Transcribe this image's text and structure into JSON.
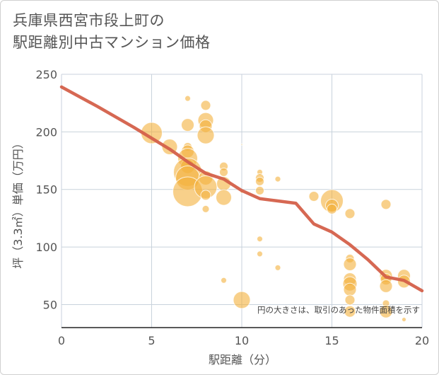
{
  "chart_data": {
    "type": "scatter",
    "title_line1": "兵庫県西宮市段上町の",
    "title_line2": "駅距離別中古マンション価格",
    "xlabel": "駅距離（分）",
    "ylabel": "坪（3.3㎡）単価（万円）",
    "note": "円の大きさは、取引のあった物件面積を示す",
    "xlim": [
      0,
      20
    ],
    "ylim": [
      30,
      250
    ],
    "xticks": [
      0,
      5,
      10,
      15,
      20
    ],
    "yticks": [
      50,
      100,
      150,
      200,
      250
    ],
    "grid": true,
    "colors": {
      "bubble": "#f3b03c",
      "trend": "#d4604a",
      "grid": "#c8d2dc"
    },
    "points": [
      {
        "x": 5,
        "y": 199,
        "s": 15
      },
      {
        "x": 6,
        "y": 187,
        "s": 11
      },
      {
        "x": 7,
        "y": 229,
        "s": 4
      },
      {
        "x": 7,
        "y": 206,
        "s": 9
      },
      {
        "x": 7,
        "y": 187,
        "s": 6
      },
      {
        "x": 7,
        "y": 183,
        "s": 9
      },
      {
        "x": 7,
        "y": 177,
        "s": 14
      },
      {
        "x": 7,
        "y": 170,
        "s": 10
      },
      {
        "x": 7,
        "y": 165,
        "s": 20
      },
      {
        "x": 7,
        "y": 160,
        "s": 17
      },
      {
        "x": 7,
        "y": 148,
        "s": 21
      },
      {
        "x": 8,
        "y": 223,
        "s": 7
      },
      {
        "x": 8,
        "y": 210,
        "s": 11
      },
      {
        "x": 8,
        "y": 205,
        "s": 9
      },
      {
        "x": 8,
        "y": 197,
        "s": 12
      },
      {
        "x": 8,
        "y": 160,
        "s": 10
      },
      {
        "x": 8,
        "y": 152,
        "s": 16
      },
      {
        "x": 8,
        "y": 145,
        "s": 7
      },
      {
        "x": 8,
        "y": 133,
        "s": 5
      },
      {
        "x": 9,
        "y": 170,
        "s": 6
      },
      {
        "x": 9,
        "y": 165,
        "s": 6
      },
      {
        "x": 9,
        "y": 155,
        "s": 10
      },
      {
        "x": 9,
        "y": 143,
        "s": 11
      },
      {
        "x": 9,
        "y": 71,
        "s": 4
      },
      {
        "x": 10,
        "y": 189,
        "s": 1
      },
      {
        "x": 10,
        "y": 148,
        "s": 2
      },
      {
        "x": 10,
        "y": 54,
        "s": 12
      },
      {
        "x": 11,
        "y": 165,
        "s": 4
      },
      {
        "x": 11,
        "y": 160,
        "s": 6
      },
      {
        "x": 11,
        "y": 157,
        "s": 6
      },
      {
        "x": 11,
        "y": 149,
        "s": 6
      },
      {
        "x": 11,
        "y": 107,
        "s": 4
      },
      {
        "x": 11,
        "y": 94,
        "s": 4
      },
      {
        "x": 12,
        "y": 159,
        "s": 4
      },
      {
        "x": 12,
        "y": 82,
        "s": 4
      },
      {
        "x": 14,
        "y": 144,
        "s": 7
      },
      {
        "x": 15,
        "y": 140,
        "s": 16
      },
      {
        "x": 15,
        "y": 136,
        "s": 9
      },
      {
        "x": 15,
        "y": 133,
        "s": 7
      },
      {
        "x": 16,
        "y": 129,
        "s": 7
      },
      {
        "x": 16,
        "y": 90,
        "s": 6
      },
      {
        "x": 16,
        "y": 85,
        "s": 9
      },
      {
        "x": 16,
        "y": 72,
        "s": 9
      },
      {
        "x": 16,
        "y": 68,
        "s": 10
      },
      {
        "x": 16,
        "y": 63,
        "s": 9
      },
      {
        "x": 16,
        "y": 54,
        "s": 7
      },
      {
        "x": 16,
        "y": 44,
        "s": 8
      },
      {
        "x": 18,
        "y": 137,
        "s": 7
      },
      {
        "x": 18,
        "y": 75,
        "s": 9
      },
      {
        "x": 18,
        "y": 72,
        "s": 8
      },
      {
        "x": 18,
        "y": 66,
        "s": 9
      },
      {
        "x": 18,
        "y": 51,
        "s": 5
      },
      {
        "x": 18,
        "y": 44,
        "s": 9
      },
      {
        "x": 19,
        "y": 75,
        "s": 9
      },
      {
        "x": 19,
        "y": 70,
        "s": 9
      },
      {
        "x": 19,
        "y": 37,
        "s": 3
      }
    ],
    "trend": {
      "x": [
        0,
        2,
        4,
        6,
        7,
        8,
        9,
        10,
        11,
        12,
        13,
        14,
        15,
        16,
        17,
        18,
        19,
        20
      ],
      "y": [
        239,
        222,
        204,
        185,
        174,
        164,
        159,
        149,
        142,
        140,
        138,
        120,
        113,
        102,
        89,
        74,
        71,
        62
      ]
    }
  }
}
